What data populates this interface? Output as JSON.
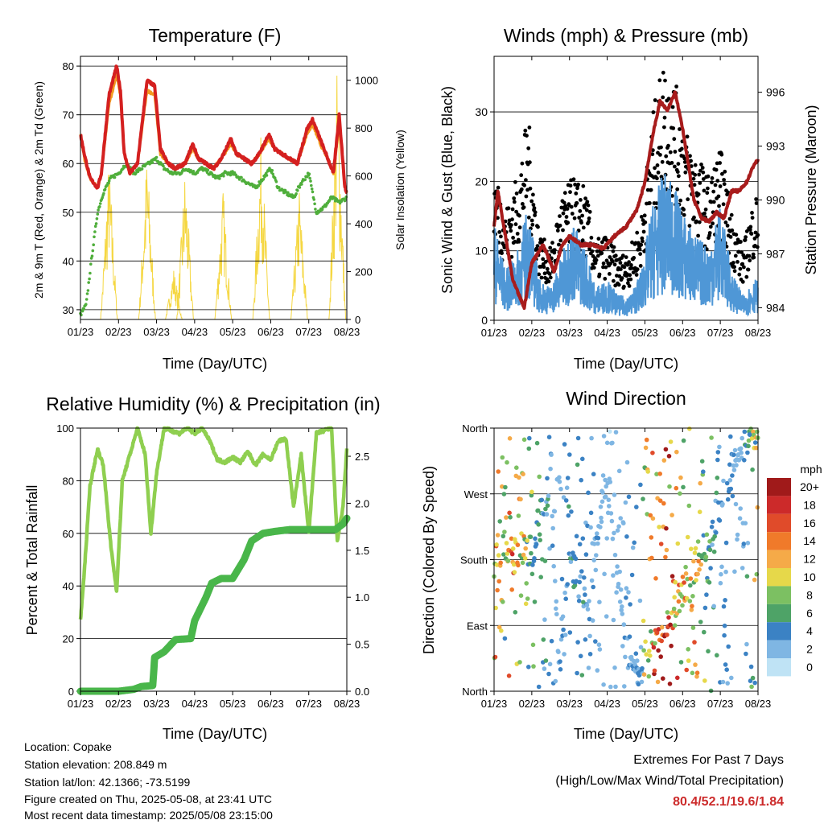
{
  "chart_data": [
    {
      "type": "line",
      "title": "Temperature (F)",
      "xlabel": "Time (Day/UTC)",
      "ylabel": "2m & 9m T (Red, Orange) & 2m Td (Green)",
      "ylabel_right": "Solar Insolation (Yellow)",
      "x_ticks": [
        "01/23",
        "02/23",
        "03/23",
        "04/23",
        "05/23",
        "06/23",
        "07/23",
        "08/23"
      ],
      "ylim": [
        28,
        82
      ],
      "y_ticks": [
        30,
        40,
        50,
        60,
        70,
        80
      ],
      "ylim_right": [
        0,
        1100
      ],
      "y_ticks_right": [
        0,
        200,
        400,
        600,
        800,
        1000
      ],
      "x_range": [
        0,
        7
      ],
      "series": [
        {
          "name": "2m T",
          "color": "#d42020",
          "x": [
            0,
            0.1,
            0.25,
            0.45,
            0.55,
            0.75,
            0.95,
            1.05,
            1.15,
            1.3,
            1.5,
            1.75,
            1.95,
            2.1,
            2.3,
            2.5,
            2.75,
            2.95,
            3.1,
            3.3,
            3.5,
            3.7,
            3.95,
            4.1,
            4.3,
            4.5,
            4.7,
            4.95,
            5.1,
            5.3,
            5.5,
            5.7,
            5.95,
            6.1,
            6.3,
            6.5,
            6.65,
            6.8,
            6.95,
            7.0
          ],
          "y": [
            66,
            62,
            57,
            55,
            58,
            74,
            80,
            75,
            62,
            58,
            60,
            77,
            76,
            63,
            60,
            59,
            60,
            64,
            61,
            60,
            59,
            61,
            65,
            62,
            61,
            60,
            62,
            66,
            63,
            62,
            61,
            60,
            67,
            69,
            65,
            61,
            58,
            70,
            55,
            54
          ]
        },
        {
          "name": "9m T",
          "color": "#f39a20",
          "x": [
            0,
            0.1,
            0.25,
            0.45,
            0.55,
            0.75,
            0.95,
            1.05,
            1.15,
            1.3,
            1.5,
            1.75,
            1.95,
            2.1,
            2.3,
            2.5,
            2.75,
            2.95,
            3.1,
            3.3,
            3.5,
            3.7,
            3.95,
            4.1,
            4.3,
            4.5,
            4.7,
            4.95,
            5.1,
            5.3,
            5.5,
            5.7,
            5.95,
            6.1,
            6.3,
            6.5,
            6.65,
            6.8,
            6.95,
            7.0
          ],
          "y": [
            66,
            61,
            57,
            55,
            58,
            72,
            78,
            74,
            62,
            58,
            60,
            75,
            74,
            62,
            60,
            59,
            60,
            63,
            61,
            60,
            59,
            61,
            64,
            62,
            61,
            60,
            62,
            65,
            63,
            62,
            61,
            60,
            66,
            68,
            64,
            61,
            58,
            68,
            55,
            54
          ]
        },
        {
          "name": "2m Td",
          "color": "#4fae3b",
          "x": [
            0,
            0.15,
            0.3,
            0.45,
            0.6,
            0.8,
            1.0,
            1.2,
            1.4,
            1.6,
            1.8,
            2.0,
            2.2,
            2.4,
            2.6,
            2.8,
            3.0,
            3.2,
            3.4,
            3.6,
            3.8,
            4.0,
            4.2,
            4.4,
            4.6,
            4.8,
            5.0,
            5.2,
            5.4,
            5.6,
            5.8,
            6.0,
            6.2,
            6.4,
            6.6,
            6.8,
            7.0
          ],
          "y": [
            29,
            31,
            41,
            50,
            54,
            57,
            58,
            60,
            58,
            59,
            60,
            61,
            59,
            58,
            58,
            59,
            58,
            59,
            58,
            57,
            58,
            58,
            57,
            56,
            55,
            57,
            59,
            55,
            54,
            53,
            56,
            58,
            50,
            51,
            53,
            52,
            53
          ]
        },
        {
          "name": "Solar Insolation",
          "color": "#f5d742",
          "peaks_x": [
            0.75,
            1.75,
            2.45,
            2.75,
            3.75,
            4.75,
            5.75,
            6.75
          ],
          "peaks": [
            700,
            720,
            220,
            650,
            560,
            800,
            560,
            1100
          ]
        }
      ]
    },
    {
      "type": "scatter",
      "title": "Winds (mph) & Pressure (mb)",
      "xlabel": "Time (Day/UTC)",
      "ylabel": "Sonic Wind & Gust (Blue, Black)",
      "ylabel_right": "Station Pressure (Maroon)",
      "x_ticks": [
        "01/23",
        "02/23",
        "03/23",
        "04/23",
        "05/23",
        "06/23",
        "07/23",
        "08/23"
      ],
      "ylim": [
        0,
        38
      ],
      "y_ticks": [
        0,
        10,
        20,
        30
      ],
      "ylim_right": [
        983.3,
        998
      ],
      "y_ticks_right": [
        984,
        987,
        990,
        993,
        996
      ],
      "x_range": [
        0,
        7
      ],
      "wind_x": [
        0,
        0.3,
        0.6,
        0.9,
        1.2,
        1.5,
        1.8,
        2.1,
        2.4,
        2.7,
        3.0,
        3.3,
        3.6,
        3.9,
        4.2,
        4.5,
        4.8,
        5.1,
        5.4,
        5.7,
        6.0,
        6.3,
        6.6,
        6.9
      ],
      "wind": [
        12,
        6,
        8,
        14,
        5,
        4,
        8,
        12,
        9,
        4,
        5,
        3,
        3,
        6,
        14,
        18,
        16,
        12,
        10,
        9,
        14,
        6,
        3,
        5
      ],
      "gust": [
        20,
        14,
        18,
        26,
        11,
        9,
        16,
        18,
        17,
        10,
        11,
        8,
        9,
        13,
        26,
        33,
        30,
        24,
        21,
        18,
        22,
        14,
        9,
        16
      ],
      "pressure_x": [
        0,
        0.1,
        0.3,
        0.5,
        0.8,
        1.0,
        1.3,
        1.6,
        1.8,
        2.0,
        2.3,
        2.6,
        2.9,
        3.2,
        3.5,
        3.8,
        4.0,
        4.2,
        4.4,
        4.6,
        4.8,
        5.0,
        5.3,
        5.5,
        5.7,
        5.9,
        6.1,
        6.3,
        6.5,
        6.7,
        6.9,
        7.0
      ],
      "pressure": [
        988.5,
        990.5,
        988.0,
        985.5,
        984.0,
        986.5,
        987.5,
        986.0,
        987.5,
        988.0,
        987.5,
        987.5,
        987.3,
        988.0,
        988.5,
        989.5,
        991.0,
        993.5,
        995.5,
        995.0,
        996.0,
        994.0,
        990.0,
        989.0,
        988.8,
        989.3,
        989.0,
        990.5,
        990.5,
        991.0,
        992.0,
        992.2
      ]
    },
    {
      "type": "line",
      "title": "Relative Humidity (%) & Precipitation (in)",
      "xlabel": "Time (Day/UTC)",
      "ylabel": "Percent & Total Rainfall",
      "x_ticks": [
        "01/23",
        "02/23",
        "03/23",
        "04/23",
        "05/23",
        "06/23",
        "07/23",
        "08/23"
      ],
      "ylim": [
        0,
        100
      ],
      "y_ticks": [
        0,
        20,
        40,
        60,
        80,
        100
      ],
      "ylim_right": [
        0,
        2.8
      ],
      "y_ticks_right": [
        "0.0",
        "0.5",
        "1.0",
        "1.5",
        "2.0",
        "2.5"
      ],
      "x_range": [
        0,
        7
      ],
      "series": [
        {
          "name": "Relative Humidity",
          "color": "#8fcf50",
          "x": [
            0,
            0.1,
            0.25,
            0.45,
            0.6,
            0.8,
            0.95,
            1.1,
            1.3,
            1.5,
            1.7,
            1.85,
            2.0,
            2.2,
            2.4,
            2.6,
            2.8,
            3.0,
            3.2,
            3.4,
            3.6,
            3.8,
            4.0,
            4.2,
            4.4,
            4.6,
            4.8,
            5.0,
            5.2,
            5.4,
            5.6,
            5.8,
            6.0,
            6.2,
            6.4,
            6.6,
            6.75,
            6.9,
            7.0
          ],
          "y": [
            27,
            45,
            78,
            92,
            86,
            55,
            38,
            80,
            90,
            100,
            90,
            60,
            83,
            100,
            99,
            98,
            100,
            98,
            100,
            95,
            88,
            87,
            89,
            87,
            91,
            86,
            90,
            88,
            95,
            96,
            70,
            90,
            60,
            98,
            99,
            100,
            57,
            70,
            92
          ]
        },
        {
          "name": "Total Rainfall",
          "color": "#49b64a",
          "x": [
            0,
            0.5,
            1.0,
            1.4,
            1.6,
            1.9,
            1.95,
            2.2,
            2.5,
            2.9,
            3.0,
            3.3,
            3.45,
            3.7,
            4.0,
            4.3,
            4.5,
            4.8,
            5.1,
            5.5,
            5.9,
            6.3,
            6.7,
            6.9,
            7.0
          ],
          "y": [
            0,
            0,
            0,
            0.02,
            0.05,
            0.06,
            0.36,
            0.42,
            0.55,
            0.56,
            0.75,
            1.0,
            1.15,
            1.2,
            1.2,
            1.4,
            1.6,
            1.68,
            1.7,
            1.72,
            1.72,
            1.72,
            1.72,
            1.78,
            1.84
          ]
        }
      ]
    },
    {
      "type": "scatter",
      "title": "Wind Direction",
      "xlabel": "Time (Day/UTC)",
      "ylabel": "Direction (Colored By Speed)",
      "x_ticks": [
        "01/23",
        "02/23",
        "03/23",
        "04/23",
        "05/23",
        "06/23",
        "07/23",
        "08/23"
      ],
      "y_ticks": [
        "North",
        "East",
        "South",
        "West",
        "North"
      ],
      "ylim": [
        0,
        360
      ],
      "x_range": [
        0,
        7
      ],
      "colorbar_title": "mph",
      "colorbar_labels": [
        "20+",
        "18",
        "16",
        "14",
        "12",
        "10",
        "8",
        "6",
        "4",
        "2",
        "0"
      ],
      "colorbar_colors": [
        "#a01a1a",
        "#cc2a2a",
        "#e04b2a",
        "#f07a2a",
        "#f5aa48",
        "#e6d84a",
        "#7cc062",
        "#4ea367",
        "#3b82c4",
        "#7fb6e3",
        "#bfe3f5"
      ],
      "direction_x": [
        0.1,
        0.3,
        0.5,
        0.8,
        1.0,
        1.5,
        1.7,
        2.0,
        2.5,
        3.0,
        3.5,
        3.9,
        4.0,
        4.3,
        4.6,
        4.8,
        5.0,
        5.2,
        5.4,
        5.6,
        5.8,
        6.0,
        6.3,
        6.5,
        6.8,
        6.9
      ],
      "direction": [
        190,
        200,
        185,
        200,
        190,
        300,
        40,
        180,
        120,
        300,
        60,
        20,
        30,
        65,
        90,
        110,
        140,
        160,
        180,
        200,
        225,
        260,
        300,
        320,
        350,
        340
      ],
      "speed": [
        14,
        10,
        16,
        12,
        8,
        4,
        2,
        6,
        4,
        2,
        3,
        4,
        12,
        18,
        20,
        16,
        14,
        14,
        12,
        8,
        6,
        4,
        4,
        2,
        8,
        10
      ]
    }
  ],
  "footer": {
    "location": "Location: Copake",
    "elevation": "Station elevation: 208.849 m",
    "latlon": "Station lat/lon: 42.1366; -73.5199",
    "created": "Figure created on Thu, 2025-05-08, at 23:41 UTC",
    "recent": "Most recent data timestamp: 2025/05/08 23:15:00"
  },
  "extremes": {
    "title": "Extremes For Past 7 Days",
    "subtitle": "(High/Low/Max Wind/Total Precipitation)",
    "values": "80.4/52.1/19.6/1.84"
  }
}
